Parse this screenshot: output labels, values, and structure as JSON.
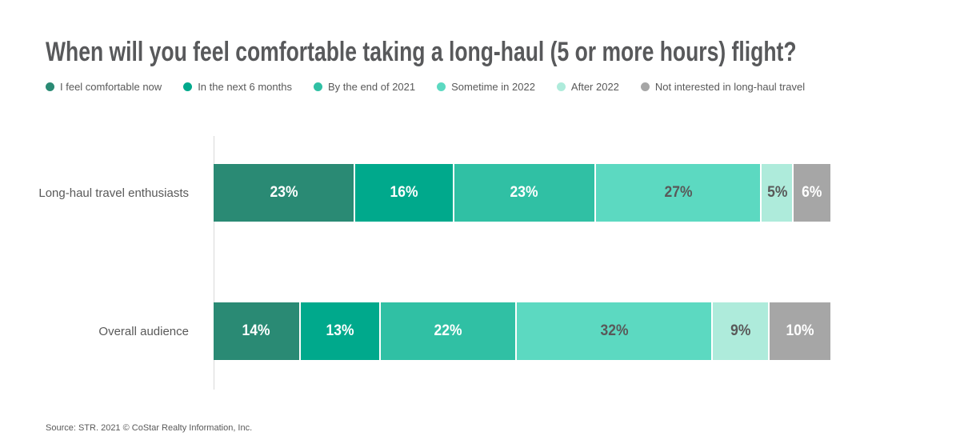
{
  "page": {
    "source": "Source: STR. 2021 © CoStar Realty Information, Inc."
  },
  "colors": {
    "title_text": "#58595b",
    "body_text": "#595959",
    "axis_line": "#d9d9d9",
    "background": "#ffffff"
  },
  "chart_data": {
    "type": "bar",
    "stacked": true,
    "orientation": "horizontal",
    "unit": "%",
    "title": "When will you feel comfortable taking a long-haul (5 or more hours) flight?",
    "legend_position": "top",
    "grid": false,
    "xlim": [
      0,
      100
    ],
    "categories": [
      "I feel comfortable now",
      "In the next 6 months",
      "By the end of 2021",
      "Sometime in 2022",
      "After 2022",
      "Not interested in long-haul travel"
    ],
    "segment_colors": [
      "#2a8a74",
      "#00a98c",
      "#30c0a4",
      "#5cd9c1",
      "#aeebdb",
      "#a6a6a6"
    ],
    "segment_label_colors": [
      "#ffffff",
      "#ffffff",
      "#ffffff",
      "#595959",
      "#595959",
      "#ffffff"
    ],
    "value_suffix": "%",
    "series": [
      {
        "name": "Long-haul travel enthusiasts",
        "values": [
          23,
          16,
          23,
          27,
          5,
          6
        ]
      },
      {
        "name": "Overall audience",
        "values": [
          14,
          13,
          22,
          32,
          9,
          10
        ]
      }
    ]
  }
}
